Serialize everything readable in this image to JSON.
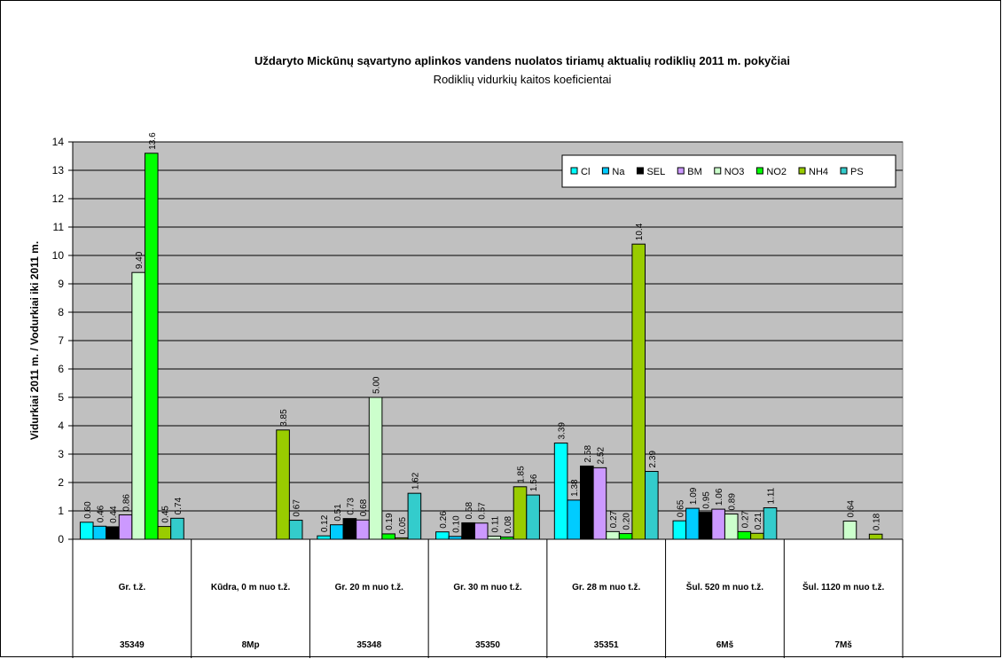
{
  "chart_data": {
    "type": "bar",
    "title": "Uždaryto Mickūnų sąvartyno aplinkos vandens nuolatos tiriamų aktualių rodiklių 2011 m. pokyčiai",
    "subtitle": "Rodiklių vidurkių kaitos koeficientai",
    "ylabel": "Vidurkiai  2011 m. / Vodurkiai iki 2011 m.",
    "ylim": [
      0,
      14
    ],
    "yticks": [
      "0",
      "1",
      "2",
      "3",
      "4",
      "5",
      "6",
      "7",
      "8",
      "9",
      "10",
      "11",
      "12",
      "13",
      "14"
    ],
    "grid": true,
    "legend_position": "top-right",
    "categories": [
      "Gr. t.ž.",
      "Kūdra, 0 m nuo t.ž.",
      "Gr. 20 m nuo t.ž.",
      "Gr. 30 m nuo t.ž.",
      "Gr. 28 m nuo t.ž.",
      "Šul. 520 m nuo t.ž.",
      "Šul. 1120 m nuo t.ž."
    ],
    "category_codes": [
      "35349",
      "8Mp",
      "35348",
      "35350",
      "35351",
      "6Mš",
      "7Mš"
    ],
    "series": [
      {
        "name": "Cl",
        "color": "#00ffff",
        "values": [
          0.6,
          null,
          0.12,
          0.26,
          3.39,
          0.65,
          null
        ],
        "labels": [
          "0.60",
          "",
          "0.12",
          "0.26",
          "3.39",
          "0.65",
          ""
        ]
      },
      {
        "name": "Na",
        "color": "#00ccff",
        "values": [
          0.46,
          null,
          0.51,
          0.1,
          1.38,
          1.09,
          null
        ],
        "labels": [
          "0.46",
          "",
          "0.51",
          "0.10",
          "1.38",
          "1.09",
          ""
        ]
      },
      {
        "name": "SEL",
        "color": "#000000",
        "values": [
          0.44,
          null,
          0.73,
          0.58,
          2.58,
          0.95,
          null
        ],
        "labels": [
          "0.44",
          "",
          "0.73",
          "0.58",
          "2.58",
          "0.95",
          ""
        ]
      },
      {
        "name": "BM",
        "color": "#cc99ff",
        "values": [
          0.86,
          null,
          0.68,
          0.57,
          2.52,
          1.06,
          null
        ],
        "labels": [
          "0.86",
          "",
          "0.68",
          "0.57",
          "2.52",
          "1.06",
          ""
        ]
      },
      {
        "name": "NO3",
        "color": "#ccffcc",
        "values": [
          9.4,
          null,
          5.0,
          0.11,
          0.27,
          0.89,
          0.64
        ],
        "labels": [
          "9.40",
          "",
          "5.00",
          "0.11",
          "0.27",
          "0.89",
          "0.64"
        ]
      },
      {
        "name": "NO2",
        "color": "#00ff00",
        "values": [
          13.6,
          null,
          0.19,
          0.08,
          0.2,
          0.27,
          null
        ],
        "labels": [
          "13.6",
          "",
          "0.19",
          "0.08",
          "0.20",
          "0.27",
          ""
        ]
      },
      {
        "name": "NH4",
        "color": "#99cc00",
        "values": [
          0.45,
          3.85,
          0.05,
          1.85,
          10.4,
          0.21,
          0.18
        ],
        "labels": [
          "0.45",
          "3.85",
          "0.05",
          "1.85",
          "10.4",
          "0.21",
          "0.18"
        ]
      },
      {
        "name": "PS",
        "color": "#33cccc",
        "values": [
          0.74,
          0.67,
          1.62,
          1.56,
          2.39,
          1.11,
          null
        ],
        "labels": [
          "0.74",
          "0.67",
          "1.62",
          "1.56",
          "2.39",
          "1.11",
          ""
        ]
      }
    ]
  }
}
